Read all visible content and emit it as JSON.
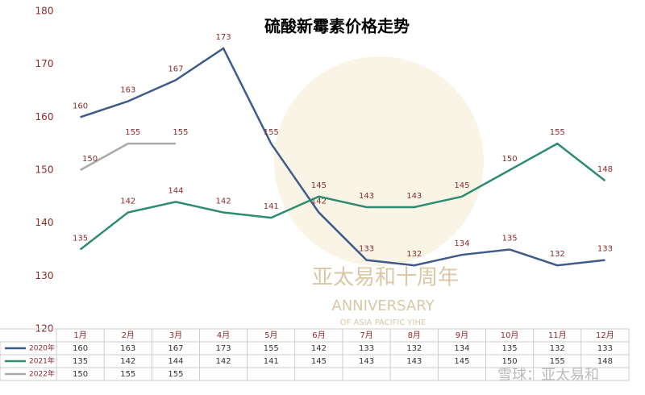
{
  "chart_data": {
    "type": "line",
    "title": "硫酸新霉素价格走势",
    "categories": [
      "1月",
      "2月",
      "3月",
      "4月",
      "5月",
      "6月",
      "7月",
      "8月",
      "9月",
      "10月",
      "11月",
      "12月"
    ],
    "series": [
      {
        "name": "2020年",
        "color": "#3f5b8c",
        "values": [
          160,
          163,
          167,
          173,
          155,
          142,
          133,
          132,
          134,
          135,
          132,
          133
        ]
      },
      {
        "name": "2021年",
        "color": "#2e8b6f",
        "values": [
          135,
          142,
          144,
          142,
          141,
          145,
          143,
          143,
          145,
          150,
          155,
          148
        ]
      },
      {
        "name": "2022年",
        "color": "#a9a9a9",
        "values": [
          150,
          155,
          155,
          null,
          null,
          null,
          null,
          null,
          null,
          null,
          null,
          null
        ]
      }
    ],
    "ylim": [
      120,
      180
    ],
    "yticks": [
      120,
      130,
      140,
      150,
      160,
      170,
      180
    ],
    "grid": false,
    "annotations": [
      "亚太易和十周年",
      "ANNIVERSARY",
      "OF ASIA PACIFIC YIHE",
      "雪球：亚太易和"
    ]
  }
}
